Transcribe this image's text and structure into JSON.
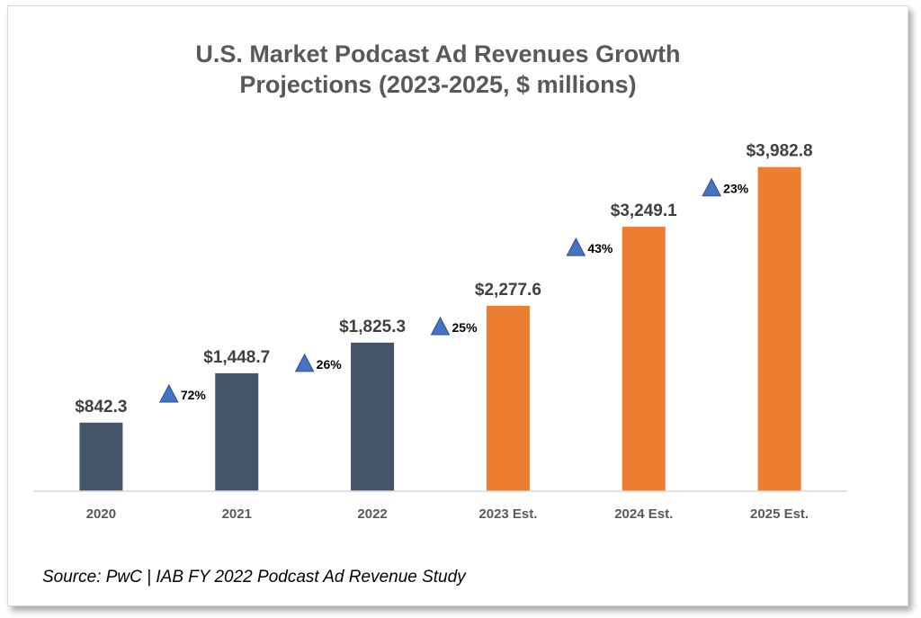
{
  "chart_data": {
    "type": "bar",
    "title_lines": [
      "U.S. Market Podcast Ad Revenues Growth",
      "Projections (2023-2025, $ millions)"
    ],
    "categories": [
      "2020",
      "2021",
      "2022",
      "2023 Est.",
      "2024 Est.",
      "2025 Est."
    ],
    "values": [
      842.3,
      1448.7,
      1825.3,
      2277.6,
      3249.1,
      3982.8
    ],
    "value_labels": [
      "$842.3",
      "$1,448.7",
      "$1,825.3",
      "$2,277.6",
      "$3,249.1",
      "$3,982.8"
    ],
    "growth_labels": [
      "72%",
      "26%",
      "25%",
      "43%",
      "23%"
    ],
    "estimated": [
      false,
      false,
      false,
      true,
      true,
      true
    ],
    "ylim": [
      0,
      4300
    ],
    "xlabel": "",
    "ylabel": "",
    "grid": false,
    "colors": {
      "actual": "#44546a",
      "estimate": "#ed7d31",
      "triangle": "#4472c4",
      "triangle_stroke": "#2f528f",
      "axis": "#d9d9d9"
    },
    "source": "Source: PwC | IAB FY 2022 Podcast Ad Revenue Study"
  }
}
